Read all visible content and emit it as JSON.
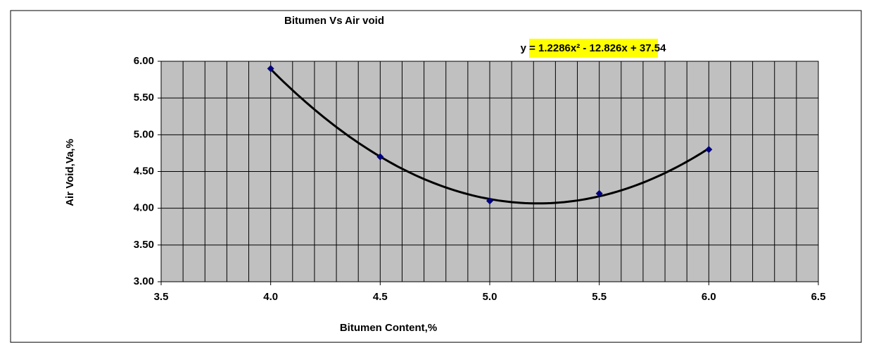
{
  "chart_data": {
    "type": "scatter",
    "title": "Bitumen Vs Air void",
    "x_label": "Bitumen Content,%",
    "y_label": "Air Void,Va,%",
    "x": [
      4.0,
      4.5,
      5.0,
      5.5,
      6.0
    ],
    "values": [
      5.9,
      4.7,
      4.1,
      4.2,
      4.8
    ],
    "color": "#000080",
    "xlim": [
      3.5,
      6.5
    ],
    "xticks": [
      3.5,
      {
        "value": 4,
        "label": "4.0"
      },
      4.5,
      {
        "value": 5,
        "label": "5.0"
      },
      5.5,
      {
        "value": 6,
        "label": "6.0"
      },
      6.5
    ],
    "ylim": [
      3,
      6
    ],
    "yticks": [
      {
        "value": 3,
        "label": "3.00"
      },
      {
        "value": 3.5,
        "label": "3.50"
      },
      {
        "value": 4,
        "label": "4.00"
      },
      {
        "value": 4.5,
        "label": "4.50"
      },
      {
        "value": 5,
        "label": "5.00"
      },
      {
        "value": 5.5,
        "label": "5.50"
      },
      {
        "value": 6,
        "label": "6.00"
      }
    ],
    "grid": true,
    "x_minor_step": 0.1,
    "trendline": {
      "coefficients": [
        1.2286,
        -12.826,
        37.54
      ],
      "color": "#000000",
      "label": "y = 1.2286x² - 12.826x + 37.54"
    }
  }
}
